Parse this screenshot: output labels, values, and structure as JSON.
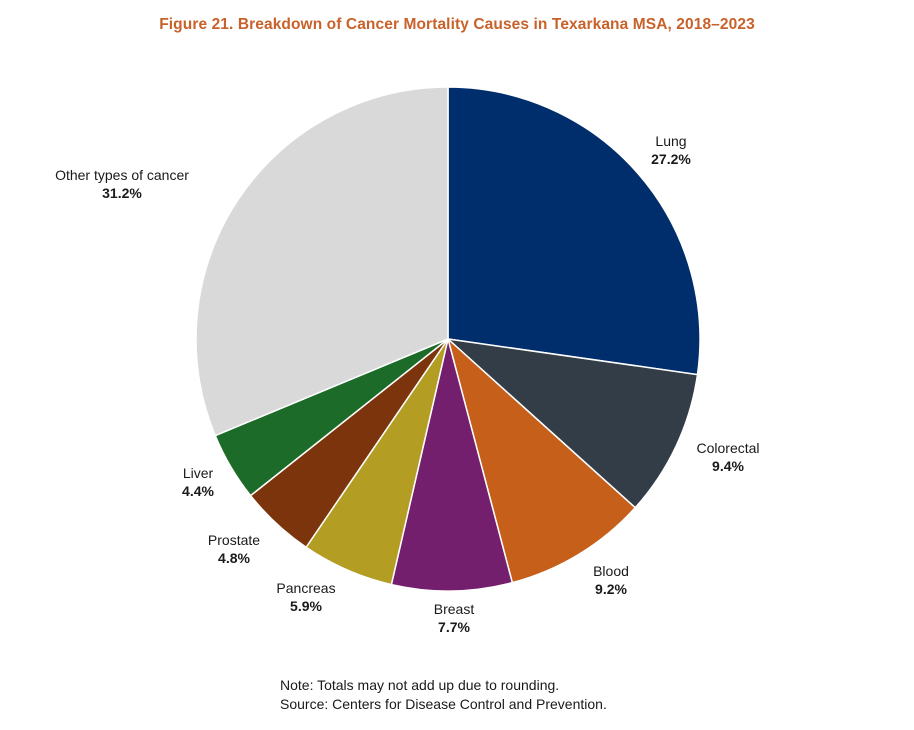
{
  "chart_data": {
    "type": "pie",
    "title": "Figure 21. Breakdown of Cancer Mortality Causes in Texarkana MSA, 2018–2023",
    "start": "12 o'clock, clockwise",
    "slices": [
      {
        "label": "Lung",
        "value": 27.2,
        "display": "27.2%",
        "color": "#002d6b"
      },
      {
        "label": "Colorectal",
        "value": 9.4,
        "display": "9.4%",
        "color": "#333d47"
      },
      {
        "label": "Blood",
        "value": 9.2,
        "display": "9.2%",
        "color": "#c65f1a"
      },
      {
        "label": "Breast",
        "value": 7.7,
        "display": "7.7%",
        "color": "#741e6e"
      },
      {
        "label": "Pancreas",
        "value": 5.9,
        "display": "5.9%",
        "color": "#b39d23"
      },
      {
        "label": "Prostate",
        "value": 4.8,
        "display": "4.8%",
        "color": "#7c340d"
      },
      {
        "label": "Liver",
        "value": 4.4,
        "display": "4.4%",
        "color": "#1c6b28"
      },
      {
        "label": "Other types of cancer",
        "value": 31.2,
        "display": "31.2%",
        "color": "#d9d9d9"
      }
    ]
  },
  "notes": {
    "note": "Note: Totals may not add up due to rounding.",
    "source": "Source: Centers for Disease Control and Prevention."
  }
}
